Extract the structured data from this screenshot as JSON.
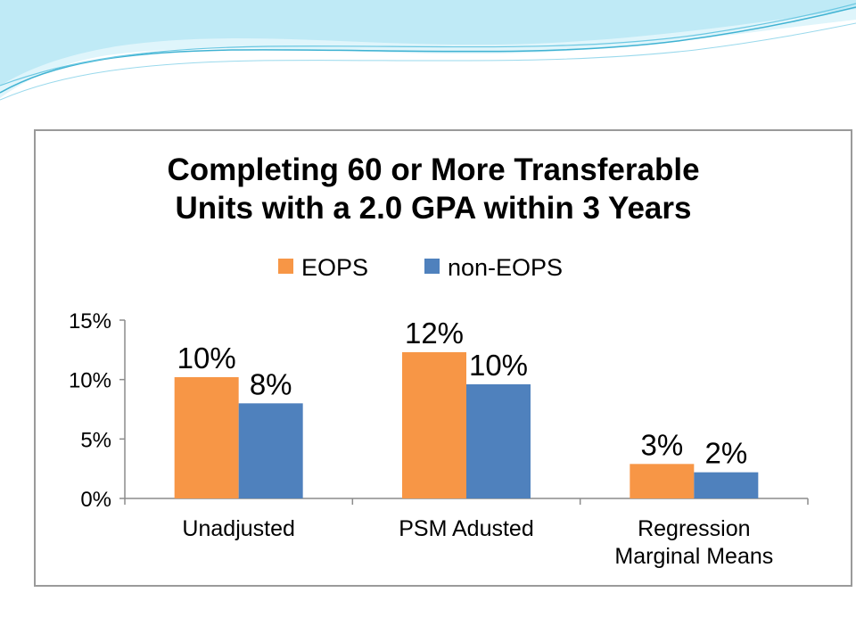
{
  "colors": {
    "eops": "#f79646",
    "non_eops": "#4f81bd",
    "axis": "#8c8c8c",
    "frame": "#9a9a9a",
    "wave_light": "#cdeff8",
    "wave_mid": "#8fd6ea",
    "wave_dark": "#3fb2d2"
  },
  "chart_data": {
    "type": "bar",
    "title": [
      "Completing 60 or More Transferable",
      "Units with a 2.0 GPA within 3 Years"
    ],
    "categories": [
      [
        "Unadjusted"
      ],
      [
        "PSM Adusted"
      ],
      [
        "Regression",
        "Marginal Means"
      ]
    ],
    "series": [
      {
        "name": "EOPS",
        "values": [
          0.102,
          0.123,
          0.029
        ],
        "labels": [
          "10%",
          "12%",
          "3%"
        ]
      },
      {
        "name": "non-EOPS",
        "values": [
          0.08,
          0.096,
          0.022
        ],
        "labels": [
          "8%",
          "10%",
          "2%"
        ]
      }
    ],
    "ylim": [
      0,
      0.15
    ],
    "yticks": [
      0,
      0.05,
      0.1,
      0.15
    ],
    "ytick_labels": [
      "0%",
      "5%",
      "10%",
      "15%"
    ],
    "legend_position": "top",
    "grid": false,
    "xlabel": "",
    "ylabel": ""
  }
}
